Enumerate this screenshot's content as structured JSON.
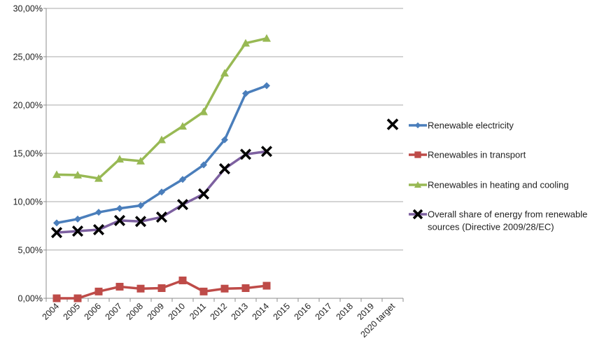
{
  "chart_data": {
    "type": "line",
    "title": "",
    "xlabel": "",
    "ylabel": "",
    "categories": [
      "2004",
      "2005",
      "2006",
      "2007",
      "2008",
      "2009",
      "2010",
      "2011",
      "2012",
      "2013",
      "2014",
      "2015",
      "2016",
      "2017",
      "2018",
      "2019",
      "2020 target"
    ],
    "y_ticks": [
      "0,00%",
      "5,00%",
      "10,00%",
      "15,00%",
      "20,00%",
      "25,00%",
      "30,00%"
    ],
    "ylim": [
      0,
      30
    ],
    "grid": "horizontal",
    "legend_position": "right",
    "series": [
      {
        "name": "Renewable electricity",
        "color": "#4a7ebb",
        "marker": "diamond",
        "values": [
          7.8,
          8.2,
          8.9,
          9.3,
          9.6,
          11.0,
          12.3,
          13.8,
          16.4,
          21.2,
          22.0,
          null,
          null,
          null,
          null,
          null,
          null
        ]
      },
      {
        "name": "Renewables in transport",
        "color": "#be4b48",
        "marker": "square",
        "values": [
          0.0,
          0.0,
          0.7,
          1.2,
          1.0,
          1.05,
          1.85,
          0.7,
          1.0,
          1.05,
          1.3,
          null,
          null,
          null,
          null,
          null,
          null
        ]
      },
      {
        "name": "Renewables in heating and cooling",
        "color": "#98b954",
        "marker": "triangle",
        "values": [
          12.8,
          12.75,
          12.4,
          14.4,
          14.2,
          16.4,
          17.8,
          19.3,
          23.3,
          26.4,
          26.9,
          null,
          null,
          null,
          null,
          null,
          null
        ]
      },
      {
        "name": "Overall share of energy from renewable sources (Directive 2009/28/EC)",
        "name_lines": [
          "Overall share of energy from renewable",
          "sources (Directive 2009/28/EC)"
        ],
        "color": "#7d60a0",
        "marker": "x",
        "marker_color": "#000000",
        "values": [
          6.8,
          6.95,
          7.1,
          8.05,
          7.95,
          8.4,
          9.7,
          10.8,
          13.4,
          14.9,
          15.2,
          null,
          null,
          null,
          null,
          null,
          null
        ]
      }
    ],
    "extra_points": [
      {
        "category": "2020 target",
        "value": 18.0,
        "marker": "x",
        "color": "#000000"
      }
    ]
  }
}
